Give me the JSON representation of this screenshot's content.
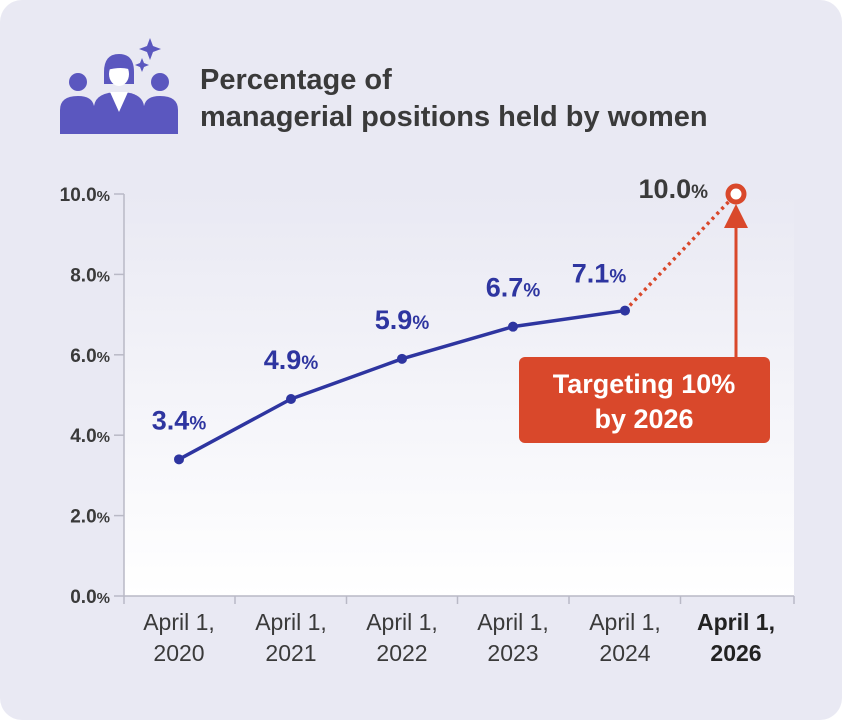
{
  "title": {
    "line1": "Percentage of",
    "line2": "managerial positions held by women"
  },
  "icon": "women-managers-icon",
  "colors": {
    "series": "#2e35a0",
    "target": "#d9482b",
    "axis_text": "#3a3a3a",
    "icon": "#5b57bf"
  },
  "callout": {
    "line1": "Targeting 10%",
    "line2": "by 2026"
  },
  "chart_data": {
    "type": "line",
    "title": "Percentage of managerial positions held by women",
    "xlabel": "",
    "ylabel": "",
    "ylim": [
      0,
      10
    ],
    "yticks": [
      "0.0%",
      "2.0%",
      "4.0%",
      "6.0%",
      "8.0%",
      "10.0%"
    ],
    "categories": [
      "April 1, 2020",
      "April 1, 2021",
      "April 1, 2022",
      "April 1, 2023",
      "April 1, 2024",
      "April 1, 2026"
    ],
    "series": [
      {
        "values": [
          3.4,
          4.9,
          5.9,
          6.7,
          7.1
        ]
      }
    ],
    "labels": [
      "3.4%",
      "4.9%",
      "5.9%",
      "6.7%",
      "7.1%"
    ],
    "target": {
      "category": "April 1, 2026",
      "value": 10.0,
      "label": "10.0%"
    },
    "grid": false
  }
}
